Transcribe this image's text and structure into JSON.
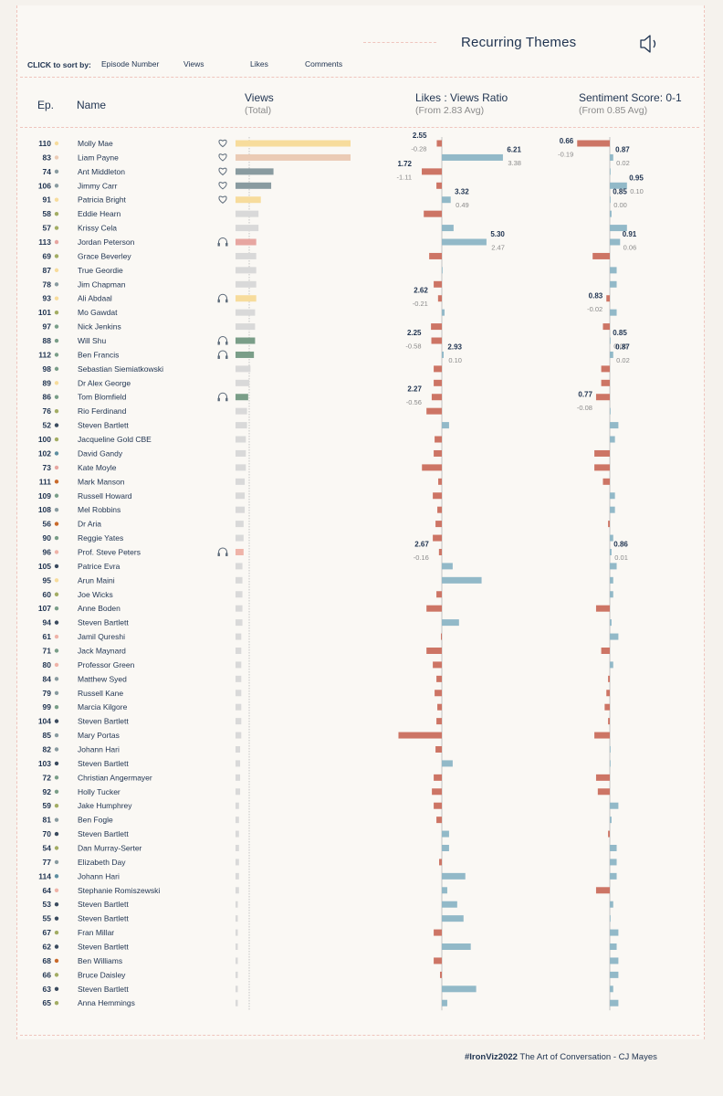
{
  "header": {
    "title": "Recurring Themes",
    "sort_label": "CLICK to sort by:",
    "sort_options": [
      "Episode Number",
      "Views",
      "Likes",
      "Comments"
    ]
  },
  "columns": {
    "ep": "Ep.",
    "name": "Name",
    "views": "Views",
    "views_sub": "(Total)",
    "ratio": "Likes : Views Ratio",
    "ratio_sub": "(From 2.83 Avg)",
    "sentiment": "Sentiment Score: 0-1",
    "sentiment_sub": "(From 0.85 Avg)"
  },
  "footer": {
    "tag": "#IronViz2022",
    "text": "The Art of Conversation - CJ Mayes"
  },
  "colors": {
    "negative": "#cd7565",
    "positive": "#92b9c8",
    "view_default": "#d9d9d9",
    "heart_gold": "#f7dc9c",
    "heart_peach": "#ebcbb5",
    "heart_slate": "#899ba0",
    "headphone_rose": "#e7a6a1",
    "headphone_green": "#7a9e88",
    "headphone_gold": "#f7dc9c",
    "headphone_peach": "#efb3a8"
  },
  "icons": {
    "heart": "heart-icon",
    "headphones": "headphones-icon",
    "speaker": "speaker-icon"
  },
  "chart_data": {
    "type": "bar",
    "ratio_avg": 2.83,
    "sentiment_avg": 0.85,
    "rows": [
      {
        "ep": "110",
        "name": "Molly Mae",
        "views": 1.0,
        "dot": "#f7dc9c",
        "icon": "heart",
        "view_color": "#f7dc9c",
        "ratio_diff": -0.28,
        "sent_diff": -0.19,
        "ratio_label": "2.55",
        "ratio_diff_label": "-0.28",
        "sent_label": "0.66",
        "sent_diff_label": "-0.19"
      },
      {
        "ep": "83",
        "name": "Liam Payne",
        "views": 1.0,
        "dot": "#ebcbb5",
        "icon": "heart",
        "view_color": "#ebcbb5",
        "ratio_diff": 3.38,
        "sent_diff": 0.02,
        "ratio_label": "6.21",
        "ratio_diff_label": "3.38",
        "sent_label": "0.87",
        "sent_diff_label": "0.02"
      },
      {
        "ep": "74",
        "name": "Ant Middleton",
        "views": 0.33,
        "dot": "#899ba0",
        "icon": "heart",
        "view_color": "#899ba0",
        "ratio_diff": -1.11,
        "sent_diff": 0.0,
        "ratio_label": "1.72",
        "ratio_diff_label": "-1.11"
      },
      {
        "ep": "106",
        "name": "Jimmy Carr",
        "views": 0.31,
        "dot": "#899ba0",
        "icon": "heart",
        "view_color": "#899ba0",
        "ratio_diff": -0.3,
        "sent_diff": 0.1,
        "sent_label": "0.95",
        "sent_diff_label": "0.10"
      },
      {
        "ep": "91",
        "name": "Patricia Bright",
        "views": 0.22,
        "dot": "#f7dc9c",
        "icon": "heart",
        "view_color": "#f7dc9c",
        "ratio_diff": 0.49,
        "sent_diff": 0.0,
        "ratio_label": "3.32",
        "ratio_diff_label": "0.49",
        "sent_label": "0.85",
        "sent_diff_label": "0.00"
      },
      {
        "ep": "58",
        "name": "Eddie Hearn",
        "views": 0.2,
        "dot": "#a3ad64",
        "ratio_diff": -1.0,
        "sent_diff": 0.01
      },
      {
        "ep": "57",
        "name": "Krissy Cela",
        "views": 0.2,
        "dot": "#a3ad64",
        "ratio_diff": 0.65,
        "sent_diff": 0.1
      },
      {
        "ep": "113",
        "name": "Jordan Peterson",
        "views": 0.18,
        "dot": "#e7a6a1",
        "icon": "headphones",
        "view_color": "#e7a6a1",
        "ratio_diff": 2.47,
        "sent_diff": 0.06,
        "ratio_label": "5.30",
        "ratio_diff_label": "2.47",
        "sent_label": "0.91",
        "sent_diff_label": "0.06"
      },
      {
        "ep": "69",
        "name": "Grace Beverley",
        "views": 0.18,
        "dot": "#a3ad64",
        "ratio_diff": -0.7,
        "sent_diff": -0.1
      },
      {
        "ep": "87",
        "name": "True Geordie",
        "views": 0.18,
        "dot": "#f7dc9c",
        "ratio_diff": 0.02,
        "sent_diff": 0.04
      },
      {
        "ep": "78",
        "name": "Jim Chapman",
        "views": 0.18,
        "dot": "#899ba0",
        "ratio_diff": -0.45,
        "sent_diff": 0.04
      },
      {
        "ep": "93",
        "name": "Ali Abdaal",
        "views": 0.18,
        "dot": "#f7dc9c",
        "icon": "headphones",
        "view_color": "#f7dc9c",
        "ratio_diff": -0.21,
        "sent_diff": -0.02,
        "ratio_label": "2.62",
        "ratio_diff_label": "-0.21",
        "sent_label": "0.83",
        "sent_diff_label": "-0.02"
      },
      {
        "ep": "101",
        "name": "Mo Gawdat",
        "views": 0.17,
        "dot": "#a3ad64",
        "ratio_diff": 0.15,
        "sent_diff": 0.04
      },
      {
        "ep": "97",
        "name": "Nick Jenkins",
        "views": 0.17,
        "dot": "#7a9e88",
        "ratio_diff": -0.6,
        "sent_diff": -0.04
      },
      {
        "ep": "88",
        "name": "Will Shu",
        "views": 0.17,
        "dot": "#7a9e88",
        "icon": "headphones",
        "view_color": "#7a9e88",
        "ratio_diff": -0.58,
        "sent_diff": 0.0,
        "ratio_label": "2.25",
        "ratio_diff_label": "-0.58",
        "sent_label": "0.85",
        "sent_diff_label": "0.00"
      },
      {
        "ep": "112",
        "name": "Ben Francis",
        "views": 0.16,
        "dot": "#7a9e88",
        "icon": "headphones",
        "view_color": "#7a9e88",
        "ratio_diff": 0.1,
        "sent_diff": 0.02,
        "ratio_label": "2.93",
        "ratio_diff_label": "0.10",
        "sent_label": "0.87",
        "sent_diff_label": "0.02"
      },
      {
        "ep": "98",
        "name": "Sebastian Siemiatkowski",
        "views": 0.13,
        "dot": "#7a9e88",
        "ratio_diff": -0.45,
        "sent_diff": -0.05
      },
      {
        "ep": "89",
        "name": "Dr Alex George",
        "views": 0.12,
        "dot": "#f7dc9c",
        "ratio_diff": -0.45,
        "sent_diff": -0.05
      },
      {
        "ep": "86",
        "name": "Tom Blomfield",
        "views": 0.11,
        "dot": "#7a9e88",
        "icon": "headphones",
        "view_color": "#7a9e88",
        "ratio_diff": -0.56,
        "sent_diff": -0.08,
        "ratio_label": "2.27",
        "ratio_diff_label": "-0.56",
        "sent_label": "0.77",
        "sent_diff_label": "-0.08"
      },
      {
        "ep": "76",
        "name": "Rio Ferdinand",
        "views": 0.1,
        "dot": "#a3ad64",
        "ratio_diff": -0.85,
        "sent_diff": 0.0
      },
      {
        "ep": "52",
        "name": "Steven Bartlett",
        "views": 0.1,
        "dot": "#3b4b5e",
        "ratio_diff": 0.4,
        "sent_diff": 0.05
      },
      {
        "ep": "100",
        "name": "Jacqueline Gold CBE",
        "views": 0.09,
        "dot": "#a3ad64",
        "ratio_diff": -0.4,
        "sent_diff": 0.03
      },
      {
        "ep": "102",
        "name": "David Gandy",
        "views": 0.09,
        "dot": "#5f8fa1",
        "ratio_diff": -0.45,
        "sent_diff": -0.09
      },
      {
        "ep": "73",
        "name": "Kate Moyle",
        "views": 0.09,
        "dot": "#e7a6a1",
        "ratio_diff": -1.1,
        "sent_diff": -0.09
      },
      {
        "ep": "111",
        "name": "Mark Manson",
        "views": 0.08,
        "dot": "#c96a2b",
        "ratio_diff": -0.2,
        "sent_diff": -0.04
      },
      {
        "ep": "109",
        "name": "Russell Howard",
        "views": 0.08,
        "dot": "#7a9e88",
        "ratio_diff": -0.5,
        "sent_diff": 0.03
      },
      {
        "ep": "108",
        "name": "Mel Robbins",
        "views": 0.08,
        "dot": "#899ba0",
        "ratio_diff": -0.25,
        "sent_diff": 0.03
      },
      {
        "ep": "56",
        "name": "Dr Aria",
        "views": 0.07,
        "dot": "#c96a2b",
        "ratio_diff": -0.35,
        "sent_diff": -0.01
      },
      {
        "ep": "90",
        "name": "Reggie Yates",
        "views": 0.07,
        "dot": "#7a9e88",
        "ratio_diff": -0.5,
        "sent_diff": 0.02
      },
      {
        "ep": "96",
        "name": "Prof. Steve Peters",
        "views": 0.07,
        "dot": "#efb3a8",
        "icon": "headphones",
        "view_color": "#efb3a8",
        "ratio_diff": -0.16,
        "sent_diff": 0.01,
        "ratio_label": "2.67",
        "ratio_diff_label": "-0.16",
        "sent_label": "0.86",
        "sent_diff_label": "0.01"
      },
      {
        "ep": "105",
        "name": "Patrice Evra",
        "views": 0.06,
        "dot": "#3b4b5e",
        "ratio_diff": 0.6,
        "sent_diff": 0.04
      },
      {
        "ep": "95",
        "name": "Arun Maini",
        "views": 0.06,
        "dot": "#f7dc9c",
        "ratio_diff": 2.2,
        "sent_diff": 0.02
      },
      {
        "ep": "60",
        "name": "Joe Wicks",
        "views": 0.06,
        "dot": "#a3ad64",
        "ratio_diff": -0.3,
        "sent_diff": 0.02
      },
      {
        "ep": "107",
        "name": "Anne Boden",
        "views": 0.06,
        "dot": "#7a9e88",
        "ratio_diff": -0.85,
        "sent_diff": -0.08
      },
      {
        "ep": "94",
        "name": "Steven Bartlett",
        "views": 0.06,
        "dot": "#3b4b5e",
        "ratio_diff": 0.95,
        "sent_diff": 0.01
      },
      {
        "ep": "61",
        "name": "Jamil Qureshi",
        "views": 0.05,
        "dot": "#efb3a8",
        "ratio_diff": -0.05,
        "sent_diff": 0.05
      },
      {
        "ep": "71",
        "name": "Jack Maynard",
        "views": 0.05,
        "dot": "#7a9e88",
        "ratio_diff": -0.85,
        "sent_diff": -0.05
      },
      {
        "ep": "80",
        "name": "Professor Green",
        "views": 0.05,
        "dot": "#efb3a8",
        "ratio_diff": -0.5,
        "sent_diff": 0.02
      },
      {
        "ep": "84",
        "name": "Matthew Syed",
        "views": 0.05,
        "dot": "#899ba0",
        "ratio_diff": -0.3,
        "sent_diff": -0.01
      },
      {
        "ep": "79",
        "name": "Russell Kane",
        "views": 0.05,
        "dot": "#899ba0",
        "ratio_diff": -0.4,
        "sent_diff": -0.02
      },
      {
        "ep": "99",
        "name": "Marcia Kilgore",
        "views": 0.05,
        "dot": "#7a9e88",
        "ratio_diff": -0.25,
        "sent_diff": -0.03
      },
      {
        "ep": "104",
        "name": "Steven Bartlett",
        "views": 0.05,
        "dot": "#3b4b5e",
        "ratio_diff": -0.3,
        "sent_diff": -0.01
      },
      {
        "ep": "85",
        "name": "Mary Portas",
        "views": 0.05,
        "dot": "#899ba0",
        "ratio_diff": -2.4,
        "sent_diff": -0.09
      },
      {
        "ep": "82",
        "name": "Johann Hari",
        "views": 0.04,
        "dot": "#899ba0",
        "ratio_diff": -0.35,
        "sent_diff": 0.0
      },
      {
        "ep": "103",
        "name": "Steven Bartlett",
        "views": 0.04,
        "dot": "#3b4b5e",
        "ratio_diff": 0.6,
        "sent_diff": 0.0
      },
      {
        "ep": "72",
        "name": "Christian Angermayer",
        "views": 0.04,
        "dot": "#7a9e88",
        "ratio_diff": -0.45,
        "sent_diff": -0.08
      },
      {
        "ep": "92",
        "name": "Holly Tucker",
        "views": 0.04,
        "dot": "#7a9e88",
        "ratio_diff": -0.55,
        "sent_diff": -0.07
      },
      {
        "ep": "59",
        "name": "Jake Humphrey",
        "views": 0.03,
        "dot": "#a3ad64",
        "ratio_diff": -0.45,
        "sent_diff": 0.05
      },
      {
        "ep": "81",
        "name": "Ben Fogle",
        "views": 0.03,
        "dot": "#899ba0",
        "ratio_diff": -0.3,
        "sent_diff": 0.01
      },
      {
        "ep": "70",
        "name": "Steven Bartlett",
        "views": 0.03,
        "dot": "#3b4b5e",
        "ratio_diff": 0.4,
        "sent_diff": -0.01
      },
      {
        "ep": "54",
        "name": "Dan Murray-Serter",
        "views": 0.03,
        "dot": "#a3ad64",
        "ratio_diff": 0.4,
        "sent_diff": 0.04
      },
      {
        "ep": "77",
        "name": "Elizabeth Day",
        "views": 0.03,
        "dot": "#899ba0",
        "ratio_diff": -0.15,
        "sent_diff": 0.04
      },
      {
        "ep": "114",
        "name": "Johann Hari",
        "views": 0.03,
        "dot": "#5f8fa1",
        "ratio_diff": 1.3,
        "sent_diff": 0.04
      },
      {
        "ep": "64",
        "name": "Stephanie Romiszewski",
        "views": 0.03,
        "dot": "#efb3a8",
        "ratio_diff": 0.3,
        "sent_diff": -0.08
      },
      {
        "ep": "53",
        "name": "Steven Bartlett",
        "views": 0.02,
        "dot": "#3b4b5e",
        "ratio_diff": 0.85,
        "sent_diff": 0.02
      },
      {
        "ep": "55",
        "name": "Steven Bartlett",
        "views": 0.02,
        "dot": "#3b4b5e",
        "ratio_diff": 1.2,
        "sent_diff": 0.0
      },
      {
        "ep": "67",
        "name": "Fran Millar",
        "views": 0.02,
        "dot": "#a3ad64",
        "ratio_diff": -0.45,
        "sent_diff": 0.05
      },
      {
        "ep": "62",
        "name": "Steven Bartlett",
        "views": 0.02,
        "dot": "#3b4b5e",
        "ratio_diff": 1.6,
        "sent_diff": 0.04
      },
      {
        "ep": "68",
        "name": "Ben Williams",
        "views": 0.02,
        "dot": "#c96a2b",
        "ratio_diff": -0.45,
        "sent_diff": 0.05
      },
      {
        "ep": "66",
        "name": "Bruce Daisley",
        "views": 0.02,
        "dot": "#a3ad64",
        "ratio_diff": -0.1,
        "sent_diff": 0.05
      },
      {
        "ep": "63",
        "name": "Steven Bartlett",
        "views": 0.02,
        "dot": "#3b4b5e",
        "ratio_diff": 1.9,
        "sent_diff": 0.02
      },
      {
        "ep": "65",
        "name": "Anna Hemmings",
        "views": 0.02,
        "dot": "#a3ad64",
        "ratio_diff": 0.3,
        "sent_diff": 0.05
      }
    ]
  }
}
